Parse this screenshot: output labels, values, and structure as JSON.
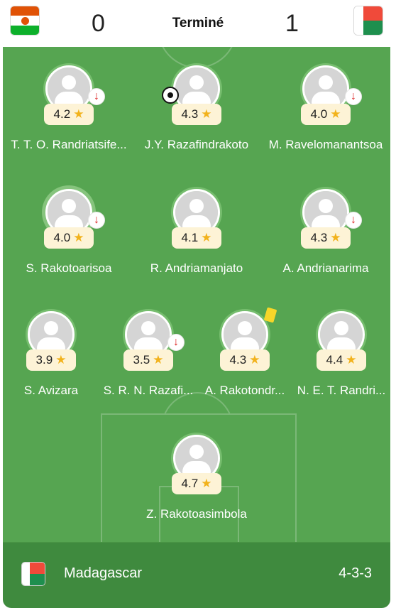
{
  "header": {
    "home_flag_icon": "niger-flag-icon",
    "away_flag_icon": "madagascar-flag-icon",
    "home_score": "0",
    "away_score": "1",
    "status": "Terminé"
  },
  "colors": {
    "pitch": "#56a551",
    "footer": "#3f8a3e",
    "rating_bg": "#fdf3d6",
    "star": "#f2b21b",
    "sub_arrow": "#dd2222",
    "yellow_card": "#f7d629"
  },
  "players": [
    {
      "name": "T. T. O. Randriatsife...",
      "rating": "4.2",
      "events": [
        "sub-out"
      ]
    },
    {
      "name": "J.Y. Razafindrakoto",
      "rating": "4.3",
      "events": [
        "goal"
      ]
    },
    {
      "name": "M. Ravelomanantsoa",
      "rating": "4.0",
      "events": [
        "sub-out"
      ]
    },
    {
      "name": "S. Rakotoarisoa",
      "rating": "4.0",
      "events": [
        "sub-out"
      ]
    },
    {
      "name": "R. Andriamanjato",
      "rating": "4.1",
      "events": []
    },
    {
      "name": "A. Andrianarima",
      "rating": "4.3",
      "events": [
        "sub-out"
      ]
    },
    {
      "name": "S. Avizara",
      "rating": "3.9",
      "events": []
    },
    {
      "name": "S. R. N. Razafi...",
      "rating": "3.5",
      "events": [
        "sub-out"
      ]
    },
    {
      "name": "A. Rakotondr...",
      "rating": "4.3",
      "events": [
        "yellow-card"
      ]
    },
    {
      "name": "N. E. T. Randri...",
      "rating": "4.4",
      "events": []
    },
    {
      "name": "Z. Rakotoasimbola",
      "rating": "4.7",
      "events": []
    }
  ],
  "sub_out_symbol": "↓",
  "star_symbol": "★",
  "footer": {
    "team_flag_icon": "madagascar-flag-icon",
    "team_name": "Madagascar",
    "formation": "4-3-3"
  }
}
